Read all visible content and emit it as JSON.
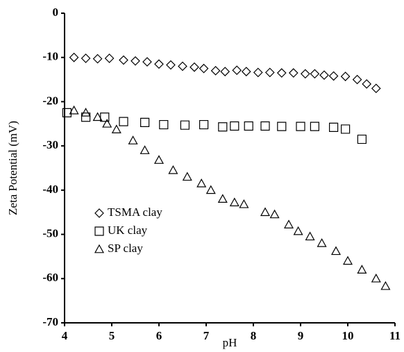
{
  "chart_data": {
    "type": "scatter",
    "xlabel": "pH",
    "ylabel": "Zeta Potential (mV)",
    "xlim": [
      4,
      11
    ],
    "xticks": [
      4,
      5,
      6,
      7,
      8,
      9,
      10,
      11
    ],
    "ylim": [
      -70,
      0
    ],
    "yticks": [
      0,
      -10,
      -20,
      -30,
      -40,
      -50,
      -60,
      -70
    ],
    "legend": "left",
    "grid": false,
    "series": [
      {
        "name": "TSMA clay",
        "color": "#000000",
        "marker": "diamond",
        "x": [
          4.2,
          4.45,
          4.7,
          4.95,
          5.25,
          5.5,
          5.75,
          6.0,
          6.25,
          6.5,
          6.75,
          6.95,
          7.2,
          7.4,
          7.65,
          7.85,
          8.1,
          8.35,
          8.6,
          8.85,
          9.1,
          9.3,
          9.5,
          9.7,
          9.95,
          10.2,
          10.4,
          10.6
        ],
        "values": [
          -10,
          -10.2,
          -10.3,
          -10.2,
          -10.6,
          -10.8,
          -11,
          -11.5,
          -11.7,
          -12,
          -12.2,
          -12.5,
          -13,
          -13.2,
          -12.9,
          -13.2,
          -13.4,
          -13.4,
          -13.5,
          -13.5,
          -13.7,
          -13.7,
          -14,
          -14.2,
          -14.3,
          -15,
          -16,
          -17
        ]
      },
      {
        "name": "UK clay",
        "color": "#000000",
        "marker": "square",
        "x": [
          4.05,
          4.45,
          4.85,
          5.25,
          5.7,
          6.1,
          6.55,
          6.95,
          7.35,
          7.6,
          7.9,
          8.25,
          8.6,
          9.0,
          9.3,
          9.7,
          9.95,
          10.3
        ],
        "values": [
          -22.5,
          -23.5,
          -23.5,
          -24.5,
          -24.7,
          -25.2,
          -25.3,
          -25.2,
          -25.7,
          -25.5,
          -25.5,
          -25.5,
          -25.6,
          -25.6,
          -25.6,
          -25.8,
          -26.2,
          -28.5
        ]
      },
      {
        "name": "SP clay",
        "color": "#000000",
        "marker": "triangle",
        "x": [
          4.2,
          4.45,
          4.7,
          4.9,
          5.1,
          5.45,
          5.7,
          6.0,
          6.3,
          6.6,
          6.9,
          7.1,
          7.35,
          7.6,
          7.8,
          8.25,
          8.45,
          8.75,
          8.95,
          9.2,
          9.45,
          9.75,
          10.0,
          10.3,
          10.6,
          10.8
        ],
        "values": [
          -22,
          -22.5,
          -23.5,
          -25,
          -26.3,
          -28.8,
          -31,
          -33.2,
          -35.5,
          -37,
          -38.5,
          -40,
          -42,
          -42.8,
          -43.2,
          -45,
          -45.5,
          -47.8,
          -49.3,
          -50.5,
          -52,
          -53.8,
          -56,
          -58,
          -60,
          -61.7
        ]
      }
    ]
  }
}
